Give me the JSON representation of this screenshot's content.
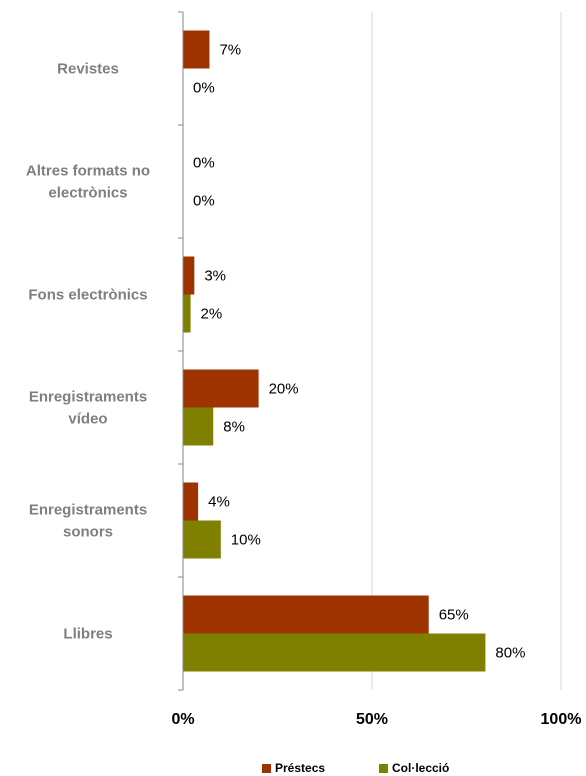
{
  "chart_data": {
    "type": "bar",
    "orientation": "horizontal",
    "categories": [
      "Revistes",
      "Altres formats no electrònics",
      "Fons electrònics",
      "Enregistraments vídeo",
      "Enregistraments sonors",
      "Llibres"
    ],
    "series": [
      {
        "name": "Préstecs",
        "color": "#9e3300",
        "values": [
          7,
          0,
          3,
          20,
          4,
          65
        ]
      },
      {
        "name": "Col·lecció",
        "color": "#808000",
        "values": [
          0,
          0,
          2,
          8,
          10,
          80
        ]
      }
    ],
    "value_labels": [
      [
        "7%",
        "0%",
        "3%",
        "20%",
        "4%",
        "65%"
      ],
      [
        "0%",
        "0%",
        "2%",
        "8%",
        "10%",
        "80%"
      ]
    ],
    "xlim": [
      0,
      100
    ],
    "x_ticks": [
      0,
      50,
      100
    ],
    "x_tick_labels": [
      "0%",
      "50%",
      "100%"
    ],
    "grid": "vertical",
    "legend": "bottom"
  }
}
